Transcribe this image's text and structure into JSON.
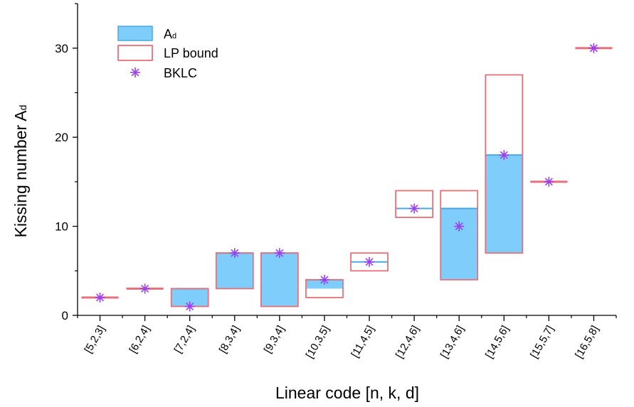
{
  "chart_data": {
    "type": "bar",
    "xlabel": "Linear code [n, k, d]",
    "ylabel_main": "Kissing number A",
    "ylabel_sub": "d",
    "ylim": [
      0,
      35
    ],
    "yticks": [
      0,
      10,
      20,
      30
    ],
    "categories": [
      "[5,2,3]",
      "[6,2,4]",
      "[7,2,4]",
      "[8,3,4]",
      "[9,3,4]",
      "[10,3,5]",
      "[11,4,5]",
      "[12,4,6]",
      "[13,4,6]",
      "[14,5,6]",
      "[15,5,7]",
      "[16,5,8]"
    ],
    "series": [
      {
        "name_main": "A",
        "name_sub": "d",
        "kind": "range",
        "color": "#7fcdfa",
        "border": "#4aa8e0",
        "low": [
          2,
          3,
          1,
          3,
          1,
          3,
          6,
          12,
          4,
          7,
          15,
          30
        ],
        "high": [
          2,
          3,
          3,
          7,
          7,
          4,
          6,
          12,
          12,
          18,
          15,
          30
        ]
      },
      {
        "name": "LP bound",
        "kind": "range",
        "color": "#e8707a",
        "low": [
          2,
          3,
          1,
          3,
          1,
          2,
          5,
          11,
          4,
          7,
          15,
          30
        ],
        "high": [
          2,
          3,
          3,
          7,
          7,
          4,
          7,
          14,
          14,
          27,
          15,
          30
        ]
      },
      {
        "name": "BKLC",
        "kind": "marker",
        "color": "#9b3ff0",
        "values": [
          2,
          3,
          1,
          7,
          7,
          4,
          6,
          12,
          10,
          18,
          15,
          30
        ]
      }
    ],
    "grid": false,
    "legend": "top-left"
  }
}
